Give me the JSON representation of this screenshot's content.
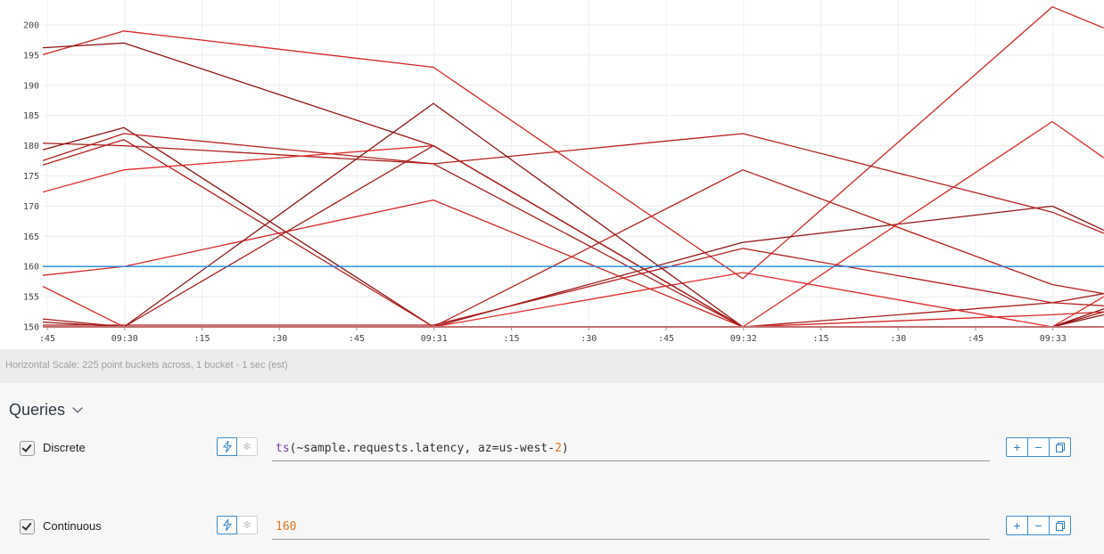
{
  "chart_data": {
    "type": "line",
    "title": "",
    "xlabel": "",
    "ylabel": "",
    "ylim": [
      150,
      202
    ],
    "yticks": [
      150,
      155,
      160,
      165,
      170,
      175,
      180,
      185,
      190,
      195,
      200
    ],
    "x_ticks": [
      ":45",
      "09:30",
      ":15",
      ":30",
      ":45",
      "09:31",
      ":15",
      ":30",
      ":45",
      "09:32",
      ":15",
      ":30",
      ":45",
      "09:33"
    ],
    "x": [
      "09:29:30",
      "09:30:00",
      "09:31:00",
      "09:32:00",
      "09:33:00",
      "09:33:10"
    ],
    "grid": true,
    "series": [
      {
        "color": "#d42626",
        "values": [
          191.5,
          199,
          193,
          158,
          203,
          199.5
        ]
      },
      {
        "color": "#8f1515",
        "values": [
          195.5,
          197,
          180,
          150,
          150,
          153
        ]
      },
      {
        "color": "#a81d1d",
        "values": [
          180.8,
          180,
          177,
          150,
          154,
          155.5
        ]
      },
      {
        "color": "#8f1515",
        "values": [
          176,
          183,
          150,
          164,
          170,
          166
        ]
      },
      {
        "color": "#b51f1f",
        "values": [
          173.5,
          182,
          177,
          182,
          169,
          165.5
        ]
      },
      {
        "color": "#b51f1f",
        "values": [
          173,
          181,
          150,
          176,
          157,
          155.5
        ]
      },
      {
        "color": "#e02a2a",
        "values": [
          169,
          176,
          180,
          150,
          184,
          178
        ]
      },
      {
        "color": "#d42626",
        "values": [
          157.2,
          160,
          171,
          150,
          152,
          152.5
        ]
      },
      {
        "color": "#e02a2a",
        "values": [
          162.8,
          150,
          150,
          159,
          150,
          155
        ]
      },
      {
        "color": "#a81d1d",
        "values": [
          152.5,
          150,
          180,
          150,
          150,
          152.5
        ]
      },
      {
        "color": "#8f1515",
        "values": [
          151.5,
          150,
          187,
          150,
          150,
          152
        ]
      },
      {
        "color": "#b51f1f",
        "values": [
          150.3,
          150.3,
          150.3,
          163,
          154,
          153.5
        ]
      },
      {
        "color": "#c42323",
        "values": [
          150,
          150,
          150,
          150,
          150,
          150
        ]
      },
      {
        "color": "#1e88e5",
        "values": [
          160,
          160,
          160,
          160,
          160,
          160
        ]
      }
    ]
  },
  "scale_bar": {
    "text": "Horizontal Scale: 225 point buckets across, 1 bucket - 1 sec (est)"
  },
  "queries": {
    "header": "Queries",
    "rows": [
      {
        "name": "Discrete",
        "expr_fn": "ts",
        "expr_open": "(~sample.requests.latency, az=us-west-",
        "expr_num": "2",
        "expr_close": ")"
      },
      {
        "name": "Continuous",
        "expr_num": "160"
      }
    ],
    "actions": {
      "add": "+",
      "remove": "−"
    },
    "icons": {
      "lightning": "lightning-icon",
      "gear": "gear-icon",
      "copy": "copy-icon",
      "chevron": "chevron-down-icon"
    }
  }
}
